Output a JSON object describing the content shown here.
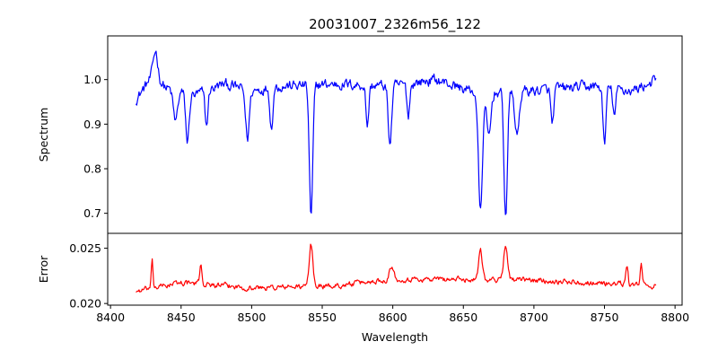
{
  "chart_data": {
    "type": "line",
    "title": "20031007_2326m56_122",
    "xlabel": "Wavelength",
    "x_range": [
      8418,
      8787
    ],
    "xlim": [
      8398,
      8805
    ],
    "xticks": [
      8400,
      8450,
      8500,
      8550,
      8600,
      8650,
      8700,
      8750,
      8800
    ],
    "grid": false,
    "panels": [
      {
        "name": "spectrum-panel",
        "ylabel": "Spectrum",
        "ylim": [
          0.655,
          1.098
        ],
        "yticks": [
          0.7,
          0.8,
          0.9,
          1.0
        ],
        "ytick_labels": [
          "0.7",
          "0.8",
          "0.9",
          "1.0"
        ],
        "series": [
          {
            "color": "#0000ff",
            "baseline": 0.985,
            "noise_amp": 0.022,
            "continuum_points": [
              [
                8418,
                0.955
              ],
              [
                8430,
                1.01
              ],
              [
                8440,
                0.98
              ],
              [
                8460,
                0.965
              ],
              [
                8480,
                0.99
              ],
              [
                8500,
                0.975
              ],
              [
                8520,
                0.985
              ],
              [
                8560,
                0.99
              ],
              [
                8600,
                0.985
              ],
              [
                8630,
                1.0
              ],
              [
                8660,
                0.97
              ],
              [
                8700,
                0.975
              ],
              [
                8740,
                0.985
              ],
              [
                8770,
                0.975
              ],
              [
                8787,
                1.0
              ]
            ],
            "features": [
              {
                "center": 8432.0,
                "depth": -0.06,
                "width": 1.5
              },
              {
                "center": 8446.0,
                "depth": 0.07,
                "width": 1.5
              },
              {
                "center": 8454.5,
                "depth": 0.11,
                "width": 1.2
              },
              {
                "center": 8468.0,
                "depth": 0.08,
                "width": 1.0
              },
              {
                "center": 8497.0,
                "depth": 0.11,
                "width": 1.3
              },
              {
                "center": 8514.0,
                "depth": 0.09,
                "width": 1.0
              },
              {
                "center": 8542.1,
                "depth": 0.3,
                "width": 1.2
              },
              {
                "center": 8582.0,
                "depth": 0.09,
                "width": 1.0
              },
              {
                "center": 8598.0,
                "depth": 0.13,
                "width": 1.2
              },
              {
                "center": 8611.0,
                "depth": 0.07,
                "width": 1.0
              },
              {
                "center": 8662.1,
                "depth": 0.27,
                "width": 1.4
              },
              {
                "center": 8668.0,
                "depth": 0.1,
                "width": 1.5
              },
              {
                "center": 8680.0,
                "depth": 0.28,
                "width": 1.2
              },
              {
                "center": 8688.0,
                "depth": 0.1,
                "width": 1.5
              },
              {
                "center": 8713.0,
                "depth": 0.08,
                "width": 1.0
              },
              {
                "center": 8750.0,
                "depth": 0.13,
                "width": 1.0
              },
              {
                "center": 8757.0,
                "depth": 0.06,
                "width": 1.0
              }
            ]
          }
        ]
      },
      {
        "name": "error-panel",
        "ylabel": "Error",
        "ylim": [
          0.01985,
          0.02635
        ],
        "yticks": [
          0.02,
          0.025
        ],
        "ytick_labels": [
          "0.020",
          "0.025"
        ],
        "series": [
          {
            "color": "#ff0000",
            "baseline": 0.0215,
            "noise_amp": 0.00045,
            "continuum_points": [
              [
                8418,
                0.0211
              ],
              [
                8450,
                0.0219
              ],
              [
                8500,
                0.0214
              ],
              [
                8560,
                0.0216
              ],
              [
                8600,
                0.0222
              ],
              [
                8640,
                0.0222
              ],
              [
                8700,
                0.0221
              ],
              [
                8740,
                0.0219
              ],
              [
                8787,
                0.0216
              ]
            ],
            "features": [
              {
                "center": 8429.5,
                "depth": 0.0023,
                "width": 0.6
              },
              {
                "center": 8464.0,
                "depth": 0.0018,
                "width": 0.8
              },
              {
                "center": 8542.1,
                "depth": 0.0038,
                "width": 1.3
              },
              {
                "center": 8662.1,
                "depth": 0.0028,
                "width": 1.3
              },
              {
                "center": 8680.0,
                "depth": 0.0032,
                "width": 1.4
              },
              {
                "center": 8599.0,
                "depth": 0.0012,
                "width": 1.5
              },
              {
                "center": 8766.0,
                "depth": 0.0018,
                "width": 0.7
              },
              {
                "center": 8776.0,
                "depth": 0.0022,
                "width": 0.6
              }
            ]
          }
        ]
      }
    ]
  }
}
